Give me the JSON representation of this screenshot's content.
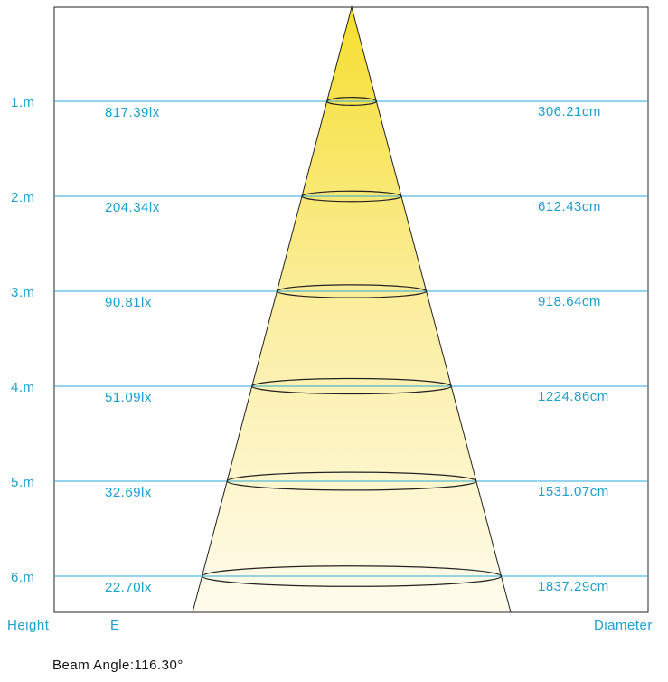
{
  "rows": [
    {
      "height": "1.m",
      "illuminance": "817.39lx",
      "diameter": "306.21cm"
    },
    {
      "height": "2.m",
      "illuminance": "204.34lx",
      "diameter": "612.43cm"
    },
    {
      "height": "3.m",
      "illuminance": "90.81lx",
      "diameter": "918.64cm"
    },
    {
      "height": "4.m",
      "illuminance": "51.09lx",
      "diameter": "1224.86cm"
    },
    {
      "height": "5.m",
      "illuminance": "32.69lx",
      "diameter": "1531.07cm"
    },
    {
      "height": "6.m",
      "illuminance": "22.70lx",
      "diameter": "1837.29cm"
    }
  ],
  "footer": {
    "height_label": "Height",
    "illuminance_label": "E",
    "diameter_label": "Diameter"
  },
  "beam_angle": "Beam Angle:116.30°"
}
